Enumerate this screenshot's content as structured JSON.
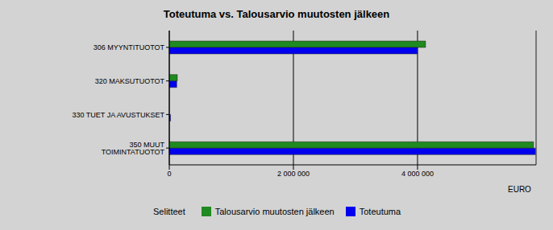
{
  "chart_data": {
    "type": "bar",
    "title": "Toteutuma vs. Talousarvio muutosten jälkeen",
    "orientation": "horizontal",
    "categories": [
      "306 MYYNTITUOTOT",
      "320 MAKSUTUOTOT",
      "330 TUET JA AVUSTUKSET",
      "350 MUUT TOIMINTATUOTOT"
    ],
    "series": [
      {
        "name": "Talousarvio muutosten jälkeen",
        "color": "#1f8a1f",
        "values": [
          4130000,
          130000,
          0,
          5870000
        ]
      },
      {
        "name": "Toteutuma",
        "color": "#0000ee",
        "values": [
          4000000,
          120000,
          20000,
          5910000
        ]
      }
    ],
    "xlim": [
      0,
      5910000
    ],
    "xticks": [
      0,
      {
        "value": 2000000,
        "label": "2 000 000"
      },
      {
        "value": 4000000,
        "label": "4 000 000"
      }
    ],
    "x_label": "EURO",
    "legend_title": "Selitteet",
    "grid": true,
    "legend": "bottom"
  }
}
